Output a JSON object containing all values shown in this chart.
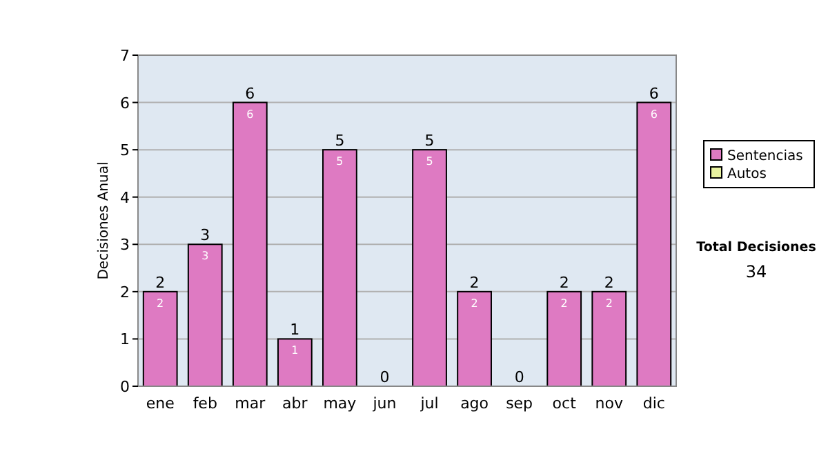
{
  "chart_data": {
    "type": "bar",
    "ylabel": "Decisiones Anual",
    "categories": [
      "ene",
      "feb",
      "mar",
      "abr",
      "may",
      "jun",
      "jul",
      "ago",
      "sep",
      "oct",
      "nov",
      "dic"
    ],
    "series": [
      {
        "name": "Sentencias",
        "color": "#de7ac2",
        "values": [
          2,
          3,
          6,
          1,
          5,
          0,
          5,
          2,
          0,
          2,
          2,
          6
        ],
        "value_labels": [
          "2",
          "3",
          "6",
          "1",
          "5",
          null,
          "5",
          "2",
          null,
          "2",
          "2",
          "6"
        ]
      },
      {
        "name": "Autos",
        "color": "#e8f2a0",
        "values": [
          0,
          0,
          0,
          0,
          0,
          0,
          0,
          0,
          0,
          0,
          0,
          0
        ]
      }
    ],
    "stacked": true,
    "totals": [
      "2",
      "3",
      "6",
      "1",
      "5",
      "0",
      "5",
      "2",
      "0",
      "2",
      "2",
      "6"
    ],
    "ylim": [
      0,
      7
    ],
    "yticks": [
      0,
      1,
      2,
      3,
      4,
      5,
      6,
      7
    ],
    "grid": "y",
    "legend": "right",
    "annotations": [
      "Total Decisiones",
      "34"
    ]
  }
}
